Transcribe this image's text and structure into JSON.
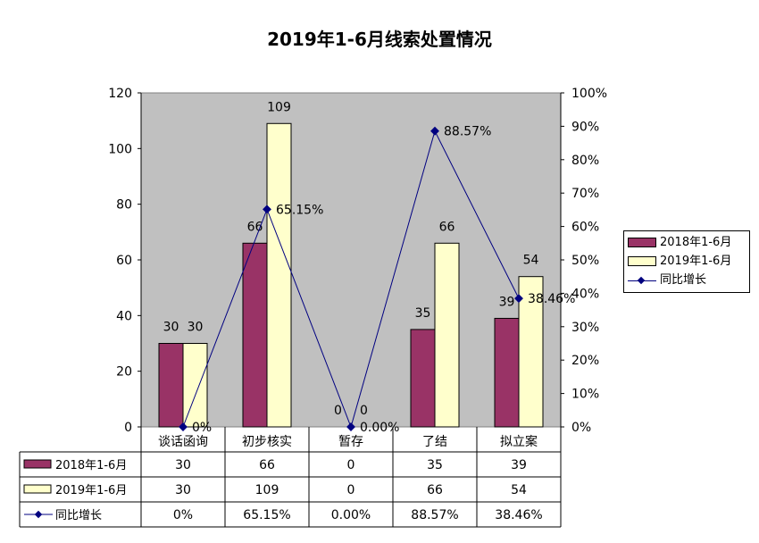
{
  "chart_data": {
    "type": "bar",
    "title": "2019年1-6月线索处置情况",
    "categories": [
      "谈话函询",
      "初步核实",
      "暂存",
      "了结",
      "拟立案"
    ],
    "series": [
      {
        "name": "2018年1-6月",
        "type": "bar",
        "axis": "left",
        "values": [
          30,
          66,
          0,
          35,
          39
        ],
        "color": "#993366"
      },
      {
        "name": "2019年1-6月",
        "type": "bar",
        "axis": "left",
        "values": [
          30,
          109,
          0,
          66,
          54
        ],
        "color": "#FFFFCC"
      },
      {
        "name": "同比增长",
        "type": "line",
        "axis": "right",
        "values": [
          0,
          65.15,
          0,
          88.57,
          38.46
        ],
        "color": "#000080"
      }
    ],
    "point_labels": {
      "2018年1-6月": [
        "30",
        "66",
        "0",
        "35",
        "39"
      ],
      "2019年1-6月": [
        "30",
        "109",
        "0",
        "66",
        "54"
      ],
      "同比增长": [
        "0%",
        "65.15%",
        "0.00%",
        "88.57%",
        "38.46%"
      ]
    },
    "y_left": {
      "min": 0,
      "max": 120,
      "step": 20
    },
    "y_right": {
      "min": 0,
      "max": 100,
      "step": 10,
      "unit": "%"
    },
    "plot_background": "#C0C0C0",
    "legend_position": "right",
    "data_table": {
      "rows": [
        {
          "label": "2018年1-6月",
          "cells": [
            "30",
            "66",
            "0",
            "35",
            "39"
          ]
        },
        {
          "label": "2019年1-6月",
          "cells": [
            "30",
            "109",
            "0",
            "66",
            "54"
          ]
        },
        {
          "label": "同比增长",
          "cells": [
            "0%",
            "65.15%",
            "0.00%",
            "88.57%",
            "38.46%"
          ]
        }
      ]
    }
  }
}
